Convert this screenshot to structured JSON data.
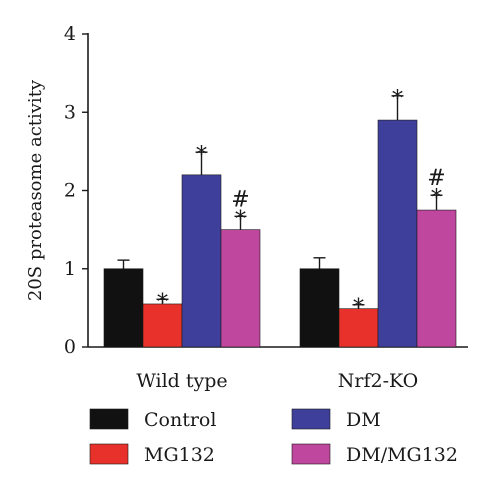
{
  "chart_data": {
    "type": "bar",
    "ylabel": "20S proteasome activity",
    "xlabel": "",
    "ylim": [
      0,
      4
    ],
    "yticks": [
      0,
      1,
      2,
      3,
      4
    ],
    "grid": false,
    "legend_placement": "bottom",
    "categories": [
      "Wild type",
      "Nrf2-KO"
    ],
    "series": [
      {
        "name": "Control",
        "color": "#111111",
        "values": [
          1.0,
          1.0
        ],
        "errors": [
          0.11,
          0.14
        ],
        "annotations": [
          "",
          ""
        ]
      },
      {
        "name": "MG132",
        "color": "#e8312a",
        "values": [
          0.55,
          0.49
        ],
        "errors": [
          0.06,
          0.05
        ],
        "annotations": [
          "*",
          "*"
        ]
      },
      {
        "name": "DM",
        "color": "#3d3f9a",
        "values": [
          2.2,
          2.9
        ],
        "errors": [
          0.29,
          0.31
        ],
        "annotations": [
          "*",
          "*"
        ]
      },
      {
        "name": "DM/MG132",
        "color": "#c0479e",
        "values": [
          1.5,
          1.75
        ],
        "errors": [
          0.17,
          0.19
        ],
        "annotations": [
          "#\n*",
          "#\n*"
        ]
      }
    ]
  }
}
